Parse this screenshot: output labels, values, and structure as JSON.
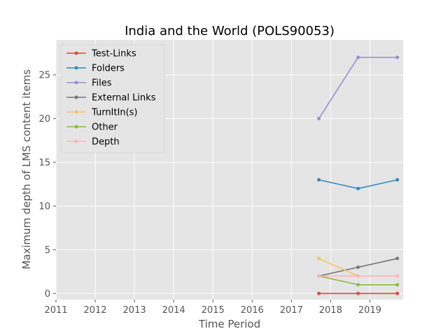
{
  "chart_data": {
    "type": "line",
    "title": "India and the World (POLS90053)",
    "xlabel": "Time Period",
    "ylabel": "Maximum depth of LMS content items",
    "xlim": [
      2011,
      2019.85
    ],
    "ylim": [
      -0.7,
      29.0
    ],
    "xticks": [
      2011,
      2012,
      2013,
      2014,
      2015,
      2016,
      2017,
      2018,
      2019
    ],
    "yticks": [
      0,
      5,
      10,
      15,
      20,
      25
    ],
    "x": [
      2017.7,
      2018.7,
      2019.7
    ],
    "grid": true,
    "legend_position": "top-left",
    "series": [
      {
        "name": "Test-Links",
        "color": "#e24a33",
        "values": [
          0,
          0,
          0
        ]
      },
      {
        "name": "Folders",
        "color": "#348abd",
        "values": [
          13,
          12,
          13
        ]
      },
      {
        "name": "Files",
        "color": "#988ed5",
        "values": [
          20,
          27,
          27
        ]
      },
      {
        "name": "External Links",
        "color": "#777777",
        "values": [
          2,
          3,
          4
        ]
      },
      {
        "name": "TurnItIn(s)",
        "color": "#fbc15e",
        "values": [
          4,
          2,
          2
        ]
      },
      {
        "name": "Other",
        "color": "#8eba42",
        "values": [
          2,
          1,
          1
        ]
      },
      {
        "name": "Depth",
        "color": "#ffb5b8",
        "values": [
          2,
          2,
          2
        ]
      }
    ]
  }
}
